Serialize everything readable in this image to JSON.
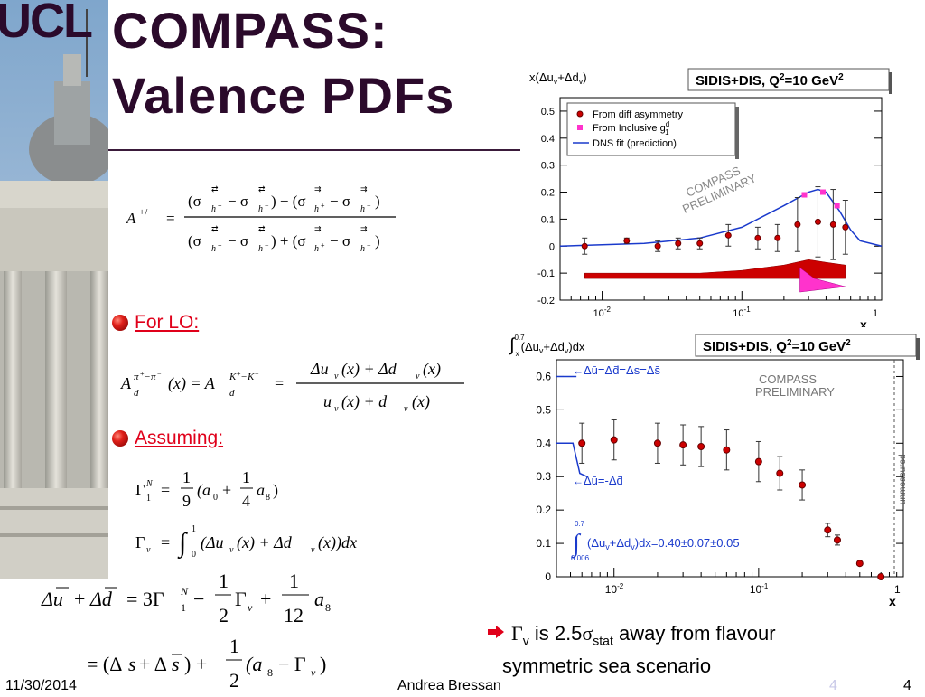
{
  "logo": {
    "text": "UCL"
  },
  "title": {
    "line1": "COMPASS:",
    "line2": "Valence PDFs"
  },
  "bullets": {
    "for_lo": "For LO:",
    "assuming": "Assuming:"
  },
  "plot1": {
    "ylabel": "x(Δu",
    "ylabel2": "v",
    "ylabel3": "+Δd",
    "ylabel4": "v",
    "ylabel5": ")",
    "box": "SIDIS+DIS, Q",
    "box_sup": "2",
    "box_tail": "=10 GeV",
    "box_sup2": "2",
    "legend": [
      "From diff asymmetry",
      "From Inclusive g",
      "DNS fit (prediction)"
    ],
    "legend_sup": "d",
    "legend_sub": "1",
    "watermark1": "COMPASS",
    "watermark2": "PRELIMINARY",
    "yticks": [
      "0.5",
      "0.4",
      "0.3",
      "0.2",
      "0.1",
      "0",
      "-0.1",
      "-0.2"
    ],
    "xticks": [
      "10",
      "-2",
      "10",
      "-1",
      "1"
    ],
    "xlabel": "x"
  },
  "plot2": {
    "box": "SIDIS+DIS, Q",
    "box_sup": "2",
    "box_tail": "=10 GeV",
    "box_sup2": "2",
    "yticks": [
      "0.6",
      "0.5",
      "0.4",
      "0.3",
      "0.2",
      "0.1",
      "0"
    ],
    "xticks": [
      "10",
      "-2",
      "10",
      "-1",
      "1"
    ],
    "xlabel": "x",
    "scen1": "Δū=Δd̄=Δs=Δs̄",
    "scen2": "Δū=-Δd̄",
    "watermark1": "COMPASS",
    "watermark2": "PRELIMINARY",
    "unmeasured": "unmeasured",
    "integral": "(Δu",
    "integral2": "+Δd",
    "integral3": ")dx=0.40±0.07±0.05",
    "int_top": "0.7",
    "int_bot": "0.006",
    "ytitle": "(Δu",
    "ytitle2": "+Δd",
    "ytitle3": ")dx",
    "ytitle_top": "0.7",
    "ytitle_bot": "x"
  },
  "note": {
    "gamma": "Γ",
    "sub_v": "v",
    "is": " is 2.5",
    "sigma": "σ",
    "sub_stat": "stat",
    "rest": " away from flavour",
    "line2": "symmetric sea scenario"
  },
  "footer": {
    "date": "11/30/2014",
    "author": "Andrea Bressan",
    "page": "4",
    "faint": "4"
  },
  "chart_data": [
    {
      "type": "scatter",
      "title": "SIDIS+DIS, Q2=10 GeV2",
      "ylabel": "x(Δuv+Δdv)",
      "xlabel": "x",
      "xscale": "log",
      "xlim": [
        0.005,
        1
      ],
      "ylim": [
        -0.2,
        0.55
      ],
      "series": [
        {
          "name": "From diff asymmetry",
          "x": [
            0.0075,
            0.015,
            0.025,
            0.035,
            0.05,
            0.08,
            0.13,
            0.18,
            0.25,
            0.35,
            0.45,
            0.55
          ],
          "y": [
            0.0,
            0.02,
            0.0,
            0.01,
            0.01,
            0.04,
            0.03,
            0.03,
            0.08,
            0.09,
            0.08,
            0.07
          ],
          "yerr": [
            0.03,
            0.01,
            0.02,
            0.02,
            0.02,
            0.04,
            0.04,
            0.05,
            0.1,
            0.13,
            0.13,
            0.1
          ]
        },
        {
          "name": "From Inclusive g1d",
          "x": [
            0.28,
            0.38,
            0.48
          ],
          "y": [
            0.19,
            0.2,
            0.15
          ]
        },
        {
          "name": "DNS fit (prediction)",
          "x": [
            0.005,
            0.01,
            0.02,
            0.05,
            0.1,
            0.2,
            0.3,
            0.35,
            0.4,
            0.5,
            0.6,
            0.7,
            1.0
          ],
          "y": [
            0.0,
            0.005,
            0.01,
            0.03,
            0.07,
            0.15,
            0.2,
            0.21,
            0.2,
            0.13,
            0.06,
            0.02,
            0.0
          ]
        }
      ]
    },
    {
      "type": "scatter",
      "title": "SIDIS+DIS, Q2=10 GeV2",
      "ylabel": "∫x^0.7(Δuv+Δdv)dx",
      "xlabel": "x",
      "xscale": "log",
      "xlim": [
        0.004,
        1
      ],
      "ylim": [
        0,
        0.65
      ],
      "series": [
        {
          "name": "data",
          "x": [
            0.006,
            0.01,
            0.02,
            0.03,
            0.04,
            0.06,
            0.1,
            0.14,
            0.2,
            0.3,
            0.35,
            0.5,
            0.7
          ],
          "y": [
            0.4,
            0.41,
            0.4,
            0.395,
            0.39,
            0.38,
            0.345,
            0.31,
            0.275,
            0.14,
            0.11,
            0.04,
            0.0
          ],
          "yerr": [
            0.06,
            0.06,
            0.06,
            0.06,
            0.06,
            0.06,
            0.06,
            0.05,
            0.045,
            0.02,
            0.015,
            0.005,
            0.0
          ]
        }
      ]
    }
  ]
}
